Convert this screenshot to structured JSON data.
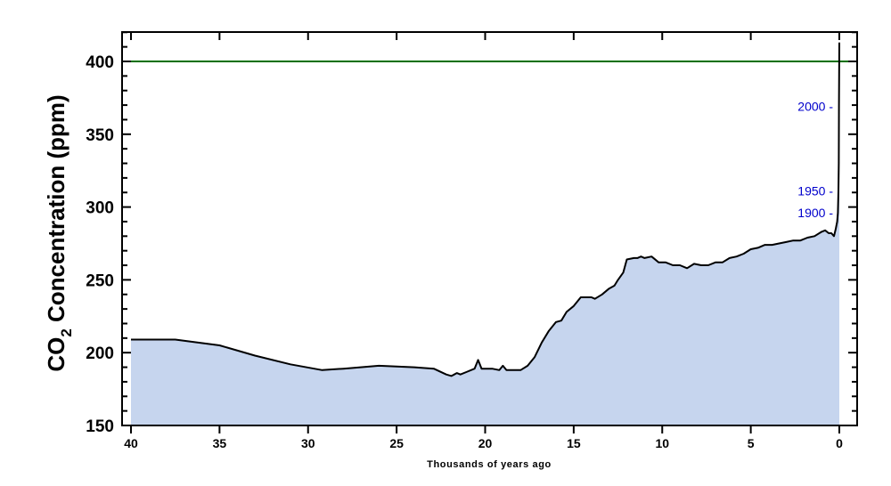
{
  "chart_data": {
    "type": "area",
    "title": "",
    "xlabel": "Thousands of years ago",
    "ylabel": "CO2 Concentration (ppm)",
    "ylabel_parts": {
      "main": "CO",
      "sub": "2",
      "rest": " Concentration (ppm)"
    },
    "xlim": [
      40,
      0
    ],
    "ylim": [
      150,
      420
    ],
    "x_ticks": [
      40,
      35,
      30,
      25,
      20,
      15,
      10,
      5,
      0
    ],
    "y_ticks": [
      150,
      200,
      250,
      300,
      350,
      400
    ],
    "grid": false,
    "legend": null,
    "reference_line": {
      "y": 400,
      "color": "#007000"
    },
    "fill_color": "#c6d5ee",
    "line_color": "#000000",
    "annotations": [
      {
        "text": "2000 -",
        "y_ppm": 369,
        "color": "#0000cc"
      },
      {
        "text": "1950 -",
        "y_ppm": 311,
        "color": "#0000cc"
      },
      {
        "text": "1900 -",
        "y_ppm": 296,
        "color": "#0000cc"
      }
    ],
    "series": [
      {
        "name": "CO2 concentration",
        "x": [
          40,
          37.5,
          35,
          33,
          31,
          29.2,
          28,
          26,
          24,
          22.9,
          22.2,
          21.9,
          21.6,
          21.4,
          21.0,
          20.6,
          20.4,
          20.2,
          20.0,
          19.6,
          19.2,
          19.0,
          18.8,
          18.4,
          18.0,
          17.6,
          17.2,
          16.8,
          16.4,
          16.0,
          15.7,
          15.4,
          15.0,
          14.6,
          14.4,
          14.0,
          13.8,
          13.4,
          13.0,
          12.7,
          12.5,
          12.2,
          12.0,
          11.6,
          11.4,
          11.2,
          11.0,
          10.6,
          10.2,
          9.8,
          9.4,
          9.0,
          8.6,
          8.2,
          7.8,
          7.4,
          7.0,
          6.6,
          6.2,
          5.8,
          5.4,
          5.0,
          4.6,
          4.2,
          3.8,
          3.4,
          3.0,
          2.6,
          2.2,
          1.8,
          1.4,
          1.0,
          0.8,
          0.6,
          0.45,
          0.3,
          0.2,
          0.12,
          0.08,
          0.05,
          0.03,
          0.02,
          0.0
        ],
        "y": [
          209,
          209,
          205,
          198,
          192,
          188,
          189,
          191,
          190,
          189,
          185,
          184,
          186,
          185,
          187,
          189,
          195,
          189,
          189,
          189,
          188,
          191,
          188,
          188,
          188,
          191,
          197,
          207,
          215,
          221,
          222,
          228,
          232,
          238,
          238,
          238,
          237,
          240,
          244,
          246,
          250,
          255,
          264,
          265,
          265,
          266,
          265,
          266,
          262,
          262,
          260,
          260,
          258,
          261,
          260,
          260,
          262,
          262,
          265,
          266,
          268,
          271,
          272,
          274,
          274,
          275,
          276,
          277,
          277,
          279,
          280,
          283,
          284,
          282,
          282,
          280,
          285,
          290,
          296,
          311,
          330,
          369,
          413
        ]
      }
    ]
  }
}
